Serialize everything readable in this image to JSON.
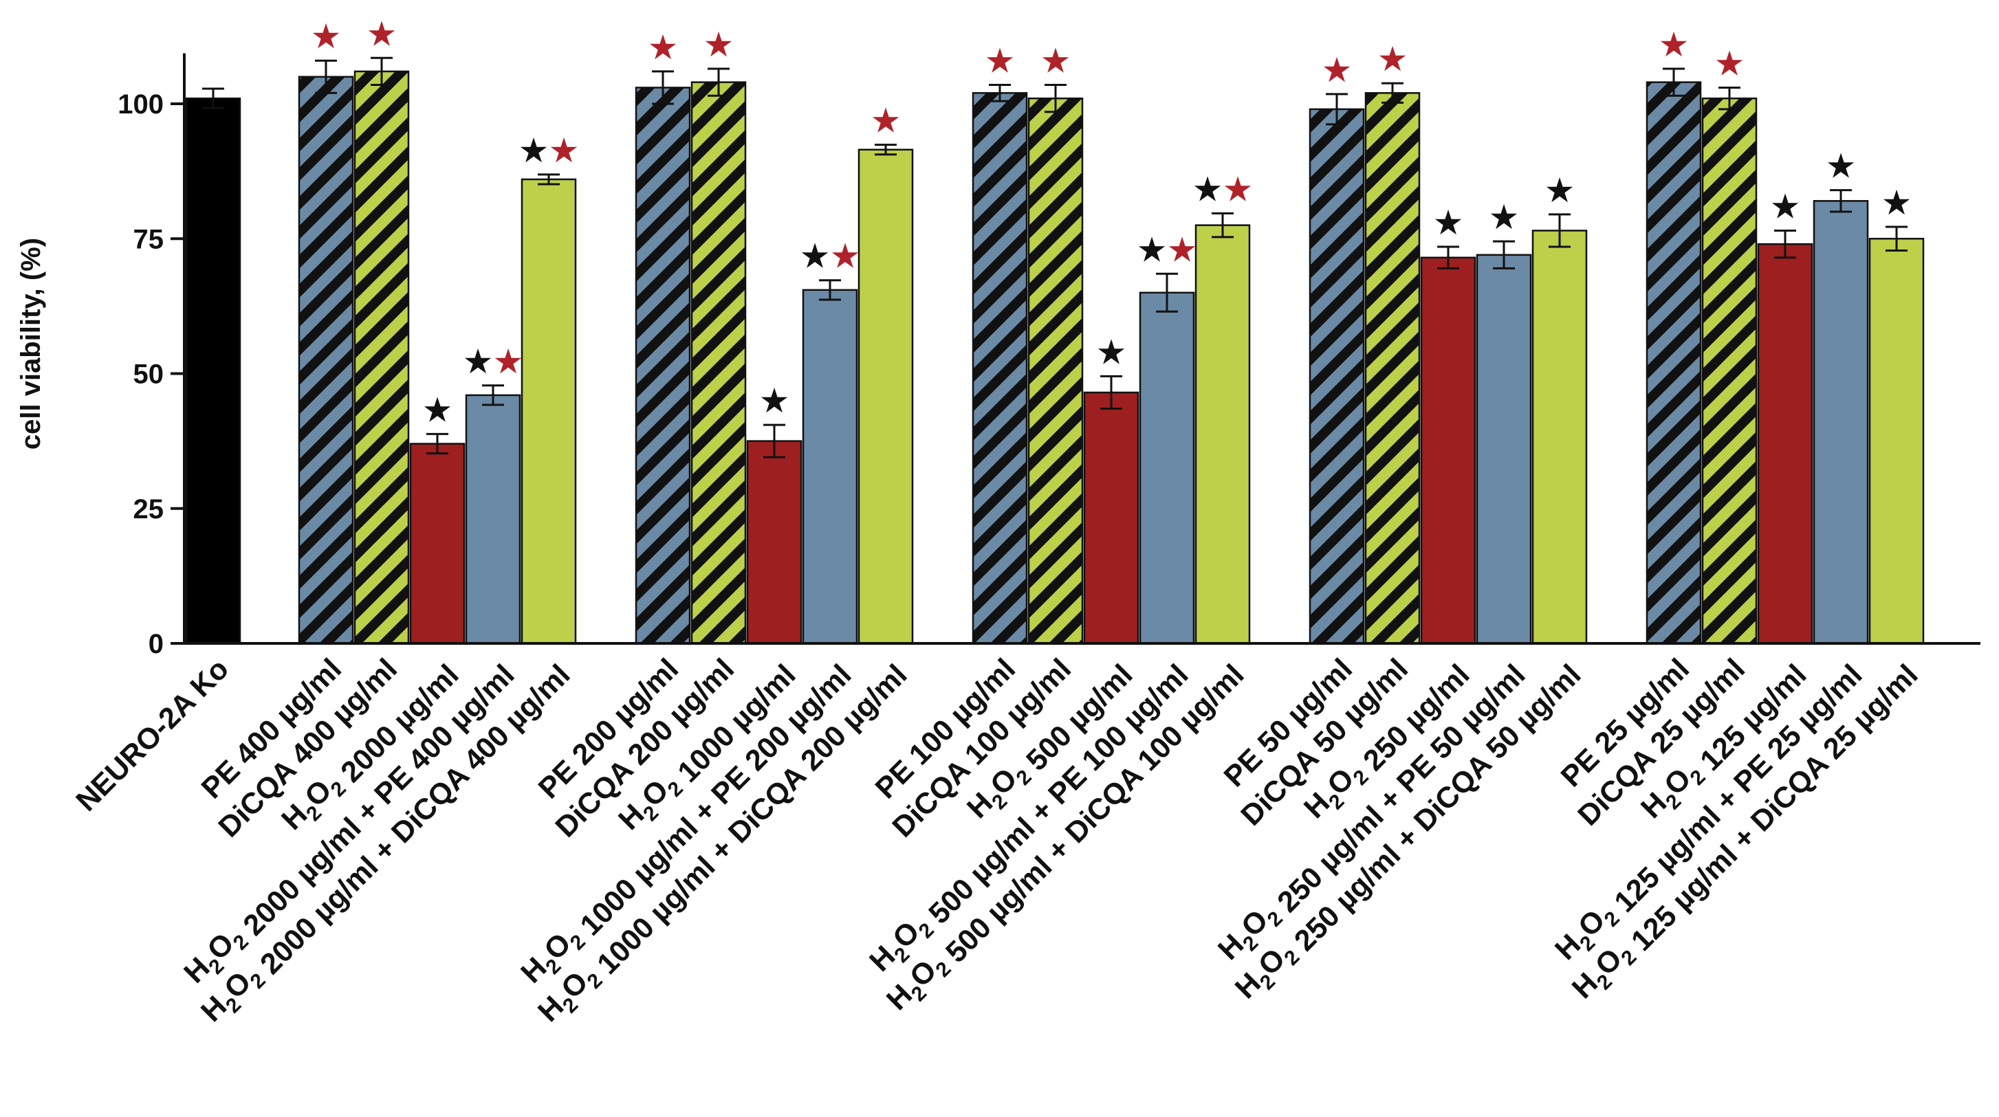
{
  "chart_data": {
    "type": "bar",
    "title": "",
    "xlabel": "",
    "ylabel": "cell viability, (%)",
    "ylim": [
      0,
      110
    ],
    "yticks": [
      0,
      25,
      50,
      75,
      100
    ],
    "colors": {
      "control": "#000000",
      "pe": "#6b8aa6",
      "dicqa": "#bcd04a",
      "h2o2": "#9e1f1f",
      "h2o2_pe": "#6b8aa6",
      "h2o2_dicqa": "#bcd04a",
      "hatch": "#111111",
      "star_black": "#111111",
      "star_red": "#b0222a"
    },
    "star_glyph": "★",
    "bars": [
      {
        "label": "NEURO-2A Ko",
        "value": 101,
        "error": 1.8,
        "kind": "control",
        "stars": []
      },
      {
        "label": "PE 400 µg/ml",
        "value": 105,
        "error": 3.0,
        "kind": "pe",
        "stars": [
          "red"
        ]
      },
      {
        "label": "DiCQA 400 µg/ml",
        "value": 106,
        "error": 2.5,
        "kind": "dicqa",
        "stars": [
          "red"
        ]
      },
      {
        "label": "H2O2 2000 µg/ml",
        "value": 37,
        "error": 1.8,
        "kind": "h2o2",
        "stars": [
          "black"
        ]
      },
      {
        "label": "H2O2 2000 µg/ml + PE 400 µg/ml",
        "value": 46,
        "error": 1.8,
        "kind": "h2o2_pe",
        "stars": [
          "black",
          "red"
        ]
      },
      {
        "label": "H2O2 2000 µg/ml + DiCQA 400 µg/ml",
        "value": 86,
        "error": 0.9,
        "kind": "h2o2_dicqa",
        "stars": [
          "black",
          "red"
        ]
      },
      {
        "label": "PE 200 µg/ml",
        "value": 103,
        "error": 3.0,
        "kind": "pe",
        "stars": [
          "red"
        ]
      },
      {
        "label": "DiCQA 200 µg/ml",
        "value": 104,
        "error": 2.5,
        "kind": "dicqa",
        "stars": [
          "red"
        ]
      },
      {
        "label": "H2O2 1000 µg/ml",
        "value": 37.5,
        "error": 3.0,
        "kind": "h2o2",
        "stars": [
          "black"
        ]
      },
      {
        "label": "H2O2 1000 µg/ml + PE 200 µg/ml",
        "value": 65.5,
        "error": 1.8,
        "kind": "h2o2_pe",
        "stars": [
          "black",
          "red"
        ]
      },
      {
        "label": "H2O2 1000 µg/ml + DiCQA 200 µg/ml",
        "value": 91.5,
        "error": 0.9,
        "kind": "h2o2_dicqa",
        "stars": [
          "red"
        ]
      },
      {
        "label": "PE 100 µg/ml",
        "value": 102,
        "error": 1.5,
        "kind": "pe",
        "stars": [
          "red"
        ]
      },
      {
        "label": "DiCQA 100 µg/ml",
        "value": 101,
        "error": 2.5,
        "kind": "dicqa",
        "stars": [
          "red"
        ]
      },
      {
        "label": "H2O2 500 µg/ml",
        "value": 46.5,
        "error": 3.0,
        "kind": "h2o2",
        "stars": [
          "black"
        ]
      },
      {
        "label": "H2O2 500 µg/ml + PE 100 µg/ml",
        "value": 65,
        "error": 3.5,
        "kind": "h2o2_pe",
        "stars": [
          "black",
          "red"
        ]
      },
      {
        "label": "H2O2 500 µg/ml + DiCQA 100 µg/ml",
        "value": 77.5,
        "error": 2.2,
        "kind": "h2o2_dicqa",
        "stars": [
          "black",
          "red"
        ]
      },
      {
        "label": "PE 50 µg/ml",
        "value": 99,
        "error": 2.8,
        "kind": "pe",
        "stars": [
          "red"
        ]
      },
      {
        "label": "DiCQA 50 µg/ml",
        "value": 102,
        "error": 1.8,
        "kind": "dicqa",
        "stars": [
          "red"
        ]
      },
      {
        "label": "H2O2 250 µg/ml",
        "value": 71.5,
        "error": 2.0,
        "kind": "h2o2",
        "stars": [
          "black"
        ]
      },
      {
        "label": "H2O2 250 µg/ml + PE 50 µg/ml",
        "value": 72,
        "error": 2.5,
        "kind": "h2o2_pe",
        "stars": [
          "black"
        ]
      },
      {
        "label": "H2O2 250 µg/ml + DiCQA 50 µg/ml",
        "value": 76.5,
        "error": 3.0,
        "kind": "h2o2_dicqa",
        "stars": [
          "black"
        ]
      },
      {
        "label": "PE 25 µg/ml",
        "value": 104,
        "error": 2.5,
        "kind": "pe",
        "stars": [
          "red"
        ]
      },
      {
        "label": "DiCQA 25 µg/ml",
        "value": 101,
        "error": 2.0,
        "kind": "dicqa",
        "stars": [
          "red"
        ]
      },
      {
        "label": "H2O2 125 µg/ml",
        "value": 74,
        "error": 2.5,
        "kind": "h2o2",
        "stars": [
          "black"
        ]
      },
      {
        "label": "H2O2 125 µg/ml + PE 25 µg/ml",
        "value": 82,
        "error": 2.0,
        "kind": "h2o2_pe",
        "stars": [
          "black"
        ]
      },
      {
        "label": "H2O2 125 µg/ml + DiCQA 25 µg/ml",
        "value": 75,
        "error": 2.2,
        "kind": "h2o2_dicqa",
        "stars": [
          "black"
        ]
      }
    ]
  }
}
